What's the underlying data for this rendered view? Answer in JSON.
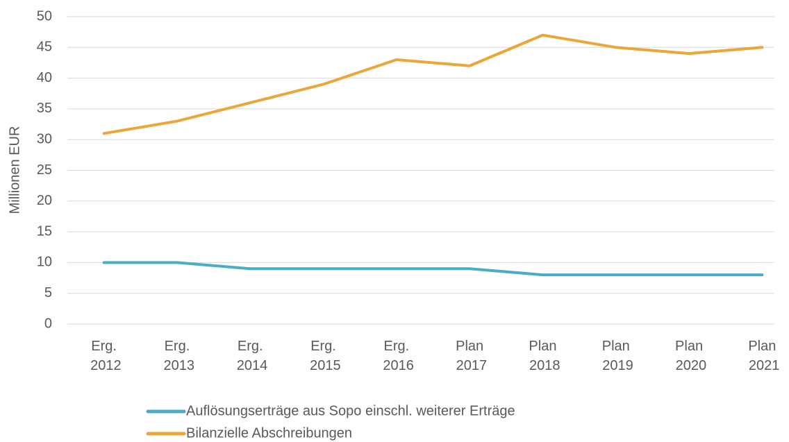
{
  "chart_data": {
    "type": "line",
    "y_label": "Millionen EUR",
    "categories": [
      "Erg. 2012",
      "Erg. 2013",
      "Erg. 2014",
      "Erg. 2015",
      "Erg. 2016",
      "Plan 2017",
      "Plan 2018",
      "Plan 2019",
      "Plan 2020",
      "Plan 2021"
    ],
    "series": [
      {
        "name": "Auflösungserträge aus Sopo einschl. weiterer Erträge",
        "color": "#4bacc6",
        "values": [
          10,
          10,
          9,
          9,
          9,
          9,
          8,
          8,
          8,
          8
        ]
      },
      {
        "name": "Bilanzielle Abschreibungen",
        "color": "#eba637",
        "values": [
          31,
          33,
          36,
          39,
          43,
          42,
          47,
          45,
          44,
          45
        ]
      }
    ],
    "ylim": [
      0,
      50
    ],
    "yticks": [
      0,
      5,
      10,
      15,
      20,
      25,
      30,
      35,
      40,
      45,
      50
    ],
    "grid": true,
    "legend": "bottom"
  }
}
